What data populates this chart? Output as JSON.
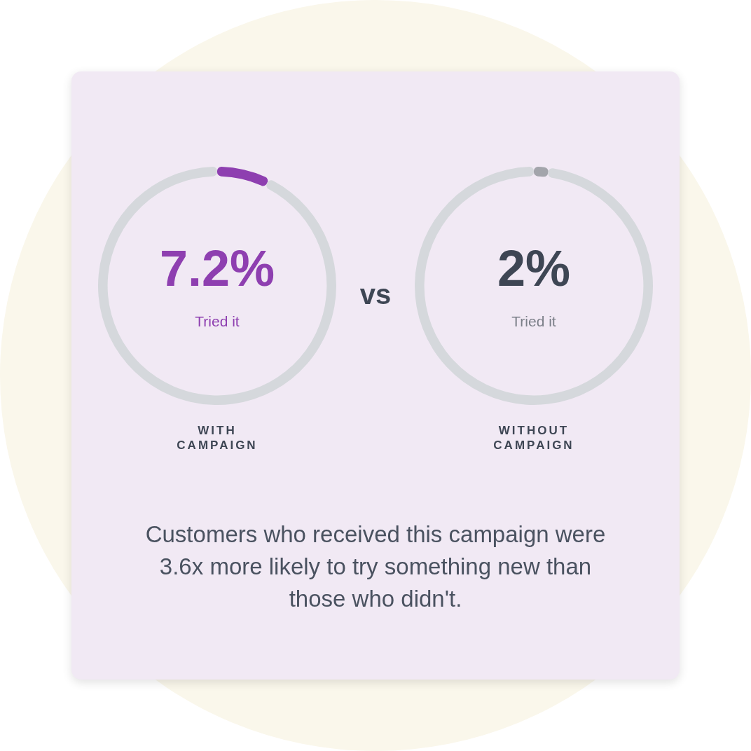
{
  "chart_data": [
    {
      "type": "donut",
      "xlabel": "WITH\nCAMPAIGN",
      "categories": [
        null,
        null
      ],
      "values": [
        7.2,
        92.8
      ],
      "colors": [
        "#8e3fb0",
        "#d5d8dc"
      ],
      "value_labels": [
        "7.2%",
        null
      ],
      "annotations": [
        "Tried it",
        "vs"
      ]
    },
    {
      "type": "donut",
      "xlabel": "WITHOUT\nCAMPAIGN",
      "categories": [
        null,
        null
      ],
      "values": [
        2,
        98
      ],
      "colors": [
        "#a3a5ab",
        "#d5d8dc"
      ],
      "value_labels": [
        "2%",
        null
      ],
      "annotations": [
        "Tried it",
        "Customers who received this campaign were 3.6x more likely to try something new than those who didn't."
      ]
    }
  ]
}
